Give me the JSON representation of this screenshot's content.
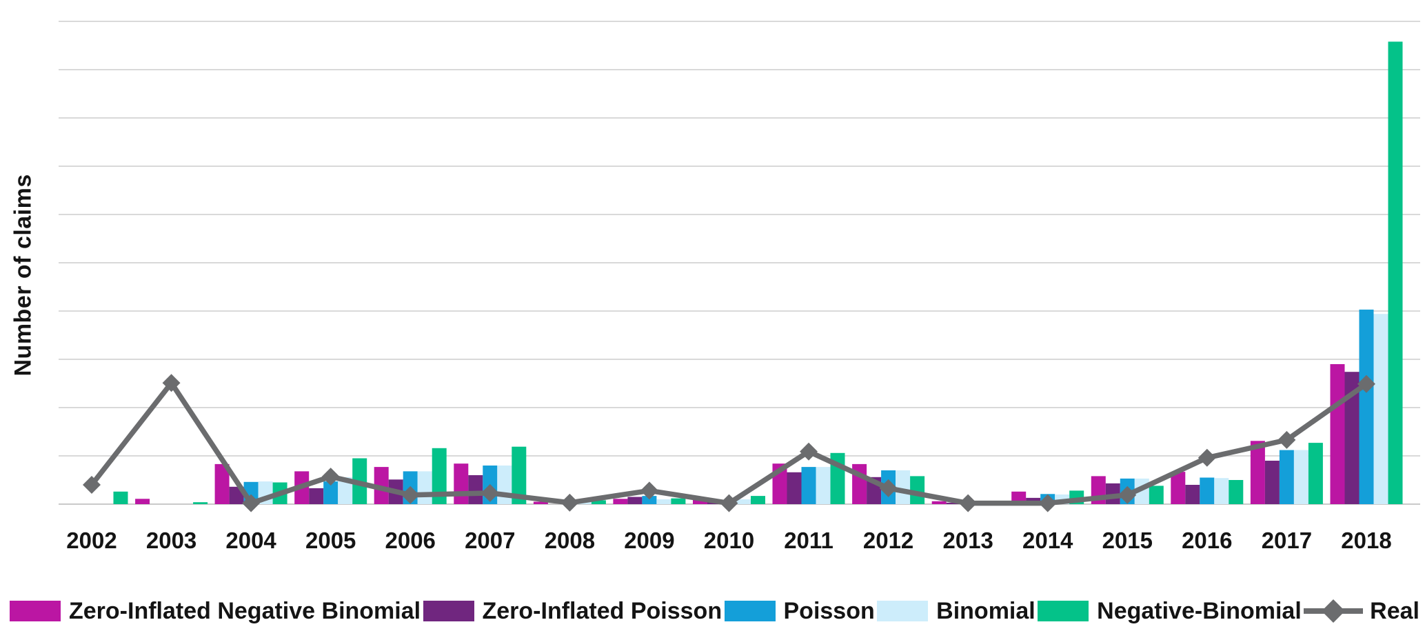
{
  "chart_data": {
    "type": "bar",
    "title": "",
    "ylabel": "Number of claims",
    "xlabel": "",
    "categories": [
      "2002",
      "2003",
      "2004",
      "2005",
      "2006",
      "2007",
      "2008",
      "2009",
      "2010",
      "2011",
      "2012",
      "2013",
      "2014",
      "2015",
      "2016",
      "2017",
      "2018"
    ],
    "series": [
      {
        "name": "Zero-Inflated Negative Binomial",
        "color": "#BB16A3",
        "values": [
          0,
          0.11,
          0.83,
          0.68,
          0.77,
          0.84,
          0.05,
          0.11,
          0.09,
          0.84,
          0.83,
          0.06,
          0.26,
          0.58,
          0.67,
          1.31,
          2.9
        ]
      },
      {
        "name": "Zero-Inflated Poisson",
        "color": "#70267F",
        "values": [
          0,
          0,
          0.36,
          0.33,
          0.51,
          0.6,
          0,
          0.15,
          0.04,
          0.66,
          0.56,
          0.03,
          0.13,
          0.43,
          0.4,
          0.9,
          2.74
        ]
      },
      {
        "name": "Poisson",
        "color": "#149FD9",
        "values": [
          0,
          0,
          0.46,
          0.47,
          0.68,
          0.8,
          0.03,
          0.17,
          0,
          0.77,
          0.7,
          0.02,
          0.21,
          0.53,
          0.55,
          1.12,
          4.03
        ]
      },
      {
        "name": "Binomial",
        "color": "#CDEDFB",
        "values": [
          0,
          0,
          0.47,
          0.56,
          0.68,
          0.8,
          0.05,
          0.1,
          0.1,
          0.77,
          0.7,
          0.03,
          0.2,
          0.53,
          0.54,
          1.12,
          3.94
        ]
      },
      {
        "name": "Negative-Binomial",
        "color": "#04C289",
        "values": [
          0.26,
          0.04,
          0.45,
          0.95,
          1.16,
          1.19,
          0.08,
          0.12,
          0.17,
          1.06,
          0.58,
          0.02,
          0.28,
          0.38,
          0.5,
          1.27,
          9.58
        ]
      }
    ],
    "line_series": {
      "name": "Real",
      "color": "#6B6C6E",
      "marker": "diamond",
      "values": [
        0.4,
        2.51,
        0.02,
        0.57,
        0.19,
        0.23,
        0.03,
        0.28,
        0.02,
        1.09,
        0.33,
        0.02,
        0.02,
        0.19,
        0.96,
        1.33,
        2.49
      ]
    },
    "ylim": [
      0,
      10
    ],
    "y_unit": "relative gridline units (no numeric y tick labels shown)",
    "gridline_count": 10,
    "grid": "horizontal only",
    "gridline_color": "#D9D9D9",
    "axis_line_color": "#C9C9C9",
    "tick_label_color": "#141414",
    "legend_position": "bottom"
  }
}
